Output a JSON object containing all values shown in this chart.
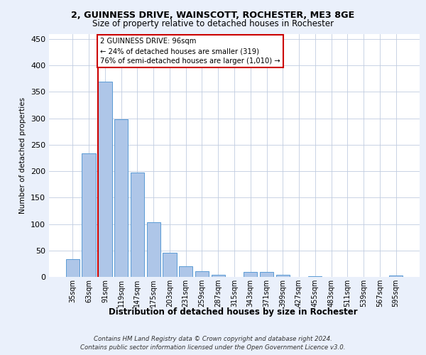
{
  "title1": "2, GUINNESS DRIVE, WAINSCOTT, ROCHESTER, ME3 8GE",
  "title2": "Size of property relative to detached houses in Rochester",
  "xlabel": "Distribution of detached houses by size in Rochester",
  "ylabel": "Number of detached properties",
  "categories": [
    "35sqm",
    "63sqm",
    "91sqm",
    "119sqm",
    "147sqm",
    "175sqm",
    "203sqm",
    "231sqm",
    "259sqm",
    "287sqm",
    "315sqm",
    "343sqm",
    "371sqm",
    "399sqm",
    "427sqm",
    "455sqm",
    "483sqm",
    "511sqm",
    "539sqm",
    "567sqm",
    "595sqm"
  ],
  "values": [
    33,
    234,
    370,
    298,
    198,
    104,
    46,
    20,
    11,
    4,
    0,
    9,
    9,
    4,
    0,
    2,
    0,
    0,
    0,
    0,
    3
  ],
  "bar_color": "#aec6e8",
  "bar_edge_color": "#5b9bd5",
  "annotation_text": "2 GUINNESS DRIVE: 96sqm\n← 24% of detached houses are smaller (319)\n76% of semi-detached houses are larger (1,010) →",
  "annotation_box_color": "#ffffff",
  "annotation_box_edge_color": "#cc0000",
  "line_color": "#cc0000",
  "line_x_index": 1.575,
  "ylim": [
    0,
    460
  ],
  "yticks": [
    0,
    50,
    100,
    150,
    200,
    250,
    300,
    350,
    400,
    450
  ],
  "footer_line1": "Contains HM Land Registry data © Crown copyright and database right 2024.",
  "footer_line2": "Contains public sector information licensed under the Open Government Licence v3.0.",
  "bg_color": "#eaf0fb",
  "plot_bg_color": "#ffffff"
}
